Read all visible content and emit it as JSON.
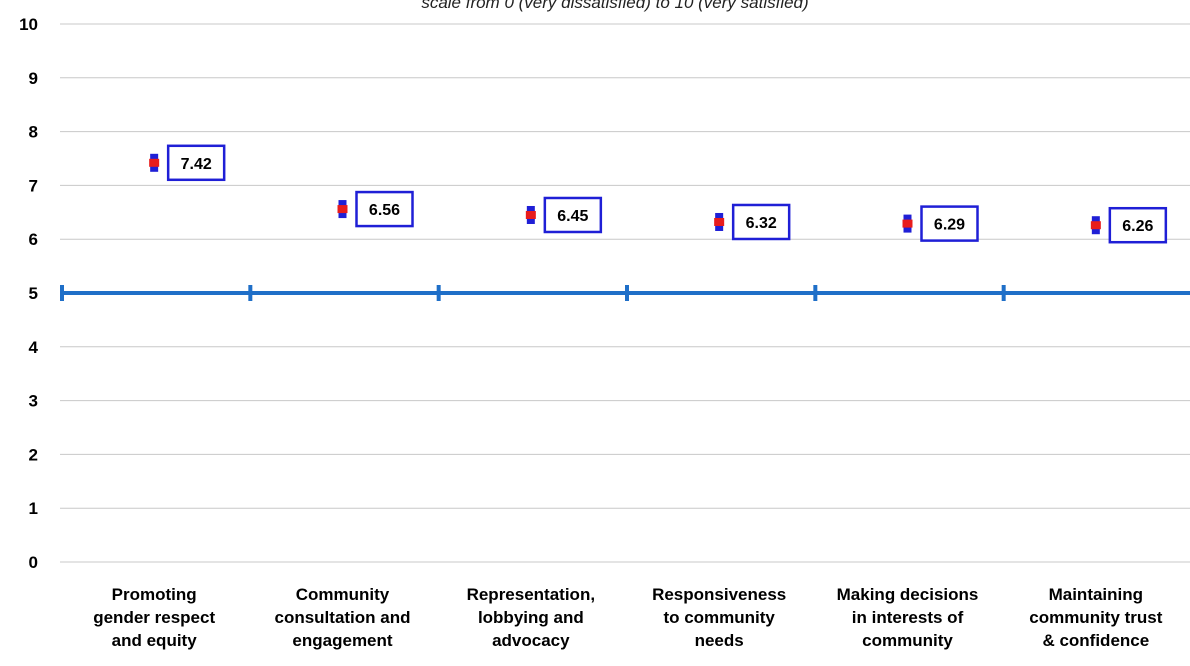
{
  "chart_data": {
    "type": "scatter",
    "subtitle": "scale from 0 (very dissatisfied) to 10 (very satisfied)",
    "categories": [
      [
        "Promoting",
        "gender respect",
        "and equity"
      ],
      [
        "Community",
        "consultation and",
        "engagement"
      ],
      [
        "Representation,",
        "lobbying and",
        "advocacy"
      ],
      [
        "Responsiveness",
        "to community",
        "needs"
      ],
      [
        "Making decisions",
        "in interests of",
        "community"
      ],
      [
        "Maintaining",
        "community trust",
        "& confidence"
      ]
    ],
    "values": [
      7.42,
      6.56,
      6.45,
      6.32,
      6.29,
      6.26
    ],
    "data_labels": [
      "7.42",
      "6.56",
      "6.45",
      "6.32",
      "6.29",
      "6.26"
    ],
    "ylim": [
      0,
      10
    ],
    "yticks": [
      0,
      1,
      2,
      3,
      4,
      5,
      6,
      7,
      8,
      9,
      10
    ],
    "reference_line": 5,
    "grid": true,
    "colors": {
      "point": "#e81c1c",
      "errorbar": "#1f1fd6",
      "reference": "#1f6fc8",
      "label_border": "#1f1fd6",
      "grid": "#c8c8c8"
    }
  }
}
